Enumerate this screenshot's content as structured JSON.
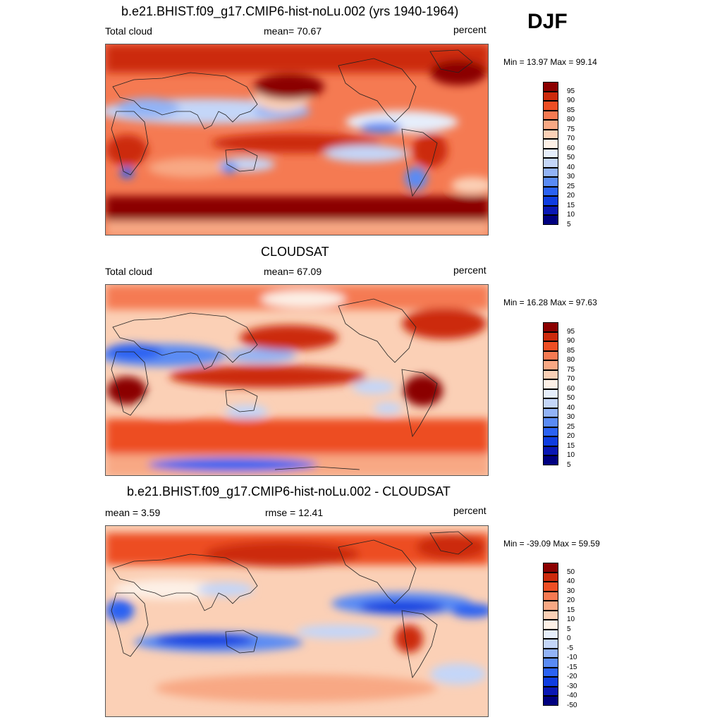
{
  "season_label": "DJF",
  "panels": [
    {
      "title": "b.e21.BHIST.f09_g17.CMIP6-hist-noLu.002 (yrs 1940-1964)",
      "left_label": "Total cloud",
      "center_label": "mean=  70.67",
      "right_label": "percent",
      "minmax": "Min =  13.97 Max =  99.14",
      "colorbar_labels": [
        "95",
        "90",
        "85",
        "80",
        "75",
        "70",
        "60",
        "50",
        "40",
        "30",
        "25",
        "20",
        "15",
        "10",
        "5"
      ]
    },
    {
      "title": "CLOUDSAT",
      "left_label": "Total cloud",
      "center_label": "mean=  67.09",
      "right_label": "percent",
      "minmax": "Min =  16.28 Max =  97.63",
      "colorbar_labels": [
        "95",
        "90",
        "85",
        "80",
        "75",
        "70",
        "60",
        "50",
        "40",
        "30",
        "25",
        "20",
        "15",
        "10",
        "5"
      ]
    },
    {
      "title": "b.e21.BHIST.f09_g17.CMIP6-hist-noLu.002 - CLOUDSAT",
      "left_label": "mean =   3.59",
      "center_label": "rmse =  12.41",
      "right_label": "percent",
      "minmax": "Min = -39.09 Max =  59.59",
      "colorbar_labels": [
        "50",
        "40",
        "30",
        "20",
        "15",
        "10",
        "5",
        "0",
        "-5",
        "-10",
        "-15",
        "-20",
        "-30",
        "-40",
        "-50"
      ]
    }
  ],
  "colorbar_colors": [
    "#000080",
    "#0a18b4",
    "#0f3de0",
    "#2b62f2",
    "#5a8bf4",
    "#92b3f6",
    "#c4d6f8",
    "#e6eefb",
    "#fdf0e6",
    "#fbd0b6",
    "#f8a884",
    "#f57a52",
    "#ed4e24",
    "#cc2a0c",
    "#8b0000"
  ]
}
